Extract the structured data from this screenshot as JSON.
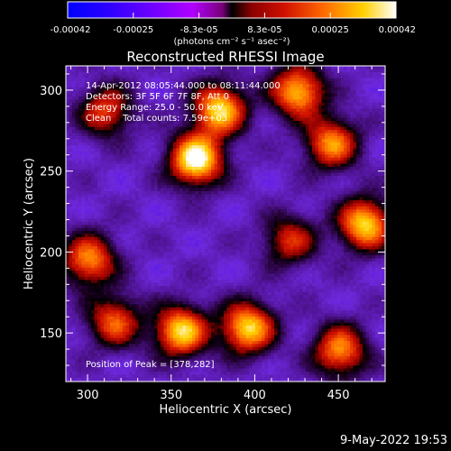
{
  "chart_data": {
    "type": "heatmap",
    "title": "Reconstructed RHESSI Image",
    "xlabel": "Heliocentric X (arcsec)",
    "ylabel": "Heliocentric Y (arcsec)",
    "xlim": [
      287,
      478
    ],
    "ylim": [
      120,
      315
    ],
    "x_ticks": [
      300,
      350,
      400,
      450
    ],
    "y_ticks": [
      150,
      200,
      250,
      300
    ],
    "colorbar": {
      "range": [
        -0.00042,
        0.00042
      ],
      "tick_labels": [
        "-0.00042",
        "-0.00025",
        "-8.3e-05",
        "8.3e-05",
        "0.00025",
        "0.00042"
      ],
      "units": "(photons cm⁻² s⁻¹ asec⁻²)"
    },
    "annotations": {
      "time": "14-Apr-2012 08:05:44.000 to 08:11:44.000",
      "detectors": "Detectors: 3F 5F 6F 7F 8F, Att 0",
      "energy": "Energy Range: 25.0 - 50.0 keV",
      "clean": "Clean    Total counts: 7.59e+03",
      "peak": "Position of Peak = [378,282]"
    },
    "peak": [
      378,
      282
    ],
    "sources": [
      {
        "x": 364,
        "y": 258,
        "intensity": 1.0
      },
      {
        "x": 378,
        "y": 289,
        "intensity": 0.85
      },
      {
        "x": 425,
        "y": 300,
        "intensity": 0.8
      },
      {
        "x": 310,
        "y": 288,
        "intensity": 0.55
      },
      {
        "x": 300,
        "y": 196,
        "intensity": 0.7
      },
      {
        "x": 355,
        "y": 152,
        "intensity": 0.85
      },
      {
        "x": 395,
        "y": 154,
        "intensity": 0.85
      },
      {
        "x": 315,
        "y": 158,
        "intensity": 0.6
      },
      {
        "x": 465,
        "y": 218,
        "intensity": 0.85
      },
      {
        "x": 445,
        "y": 268,
        "intensity": 0.7
      },
      {
        "x": 450,
        "y": 140,
        "intensity": 0.7
      },
      {
        "x": 420,
        "y": 208,
        "intensity": 0.5
      }
    ],
    "grid": false
  },
  "footer": {
    "date": "9-May-2022 19:53"
  }
}
